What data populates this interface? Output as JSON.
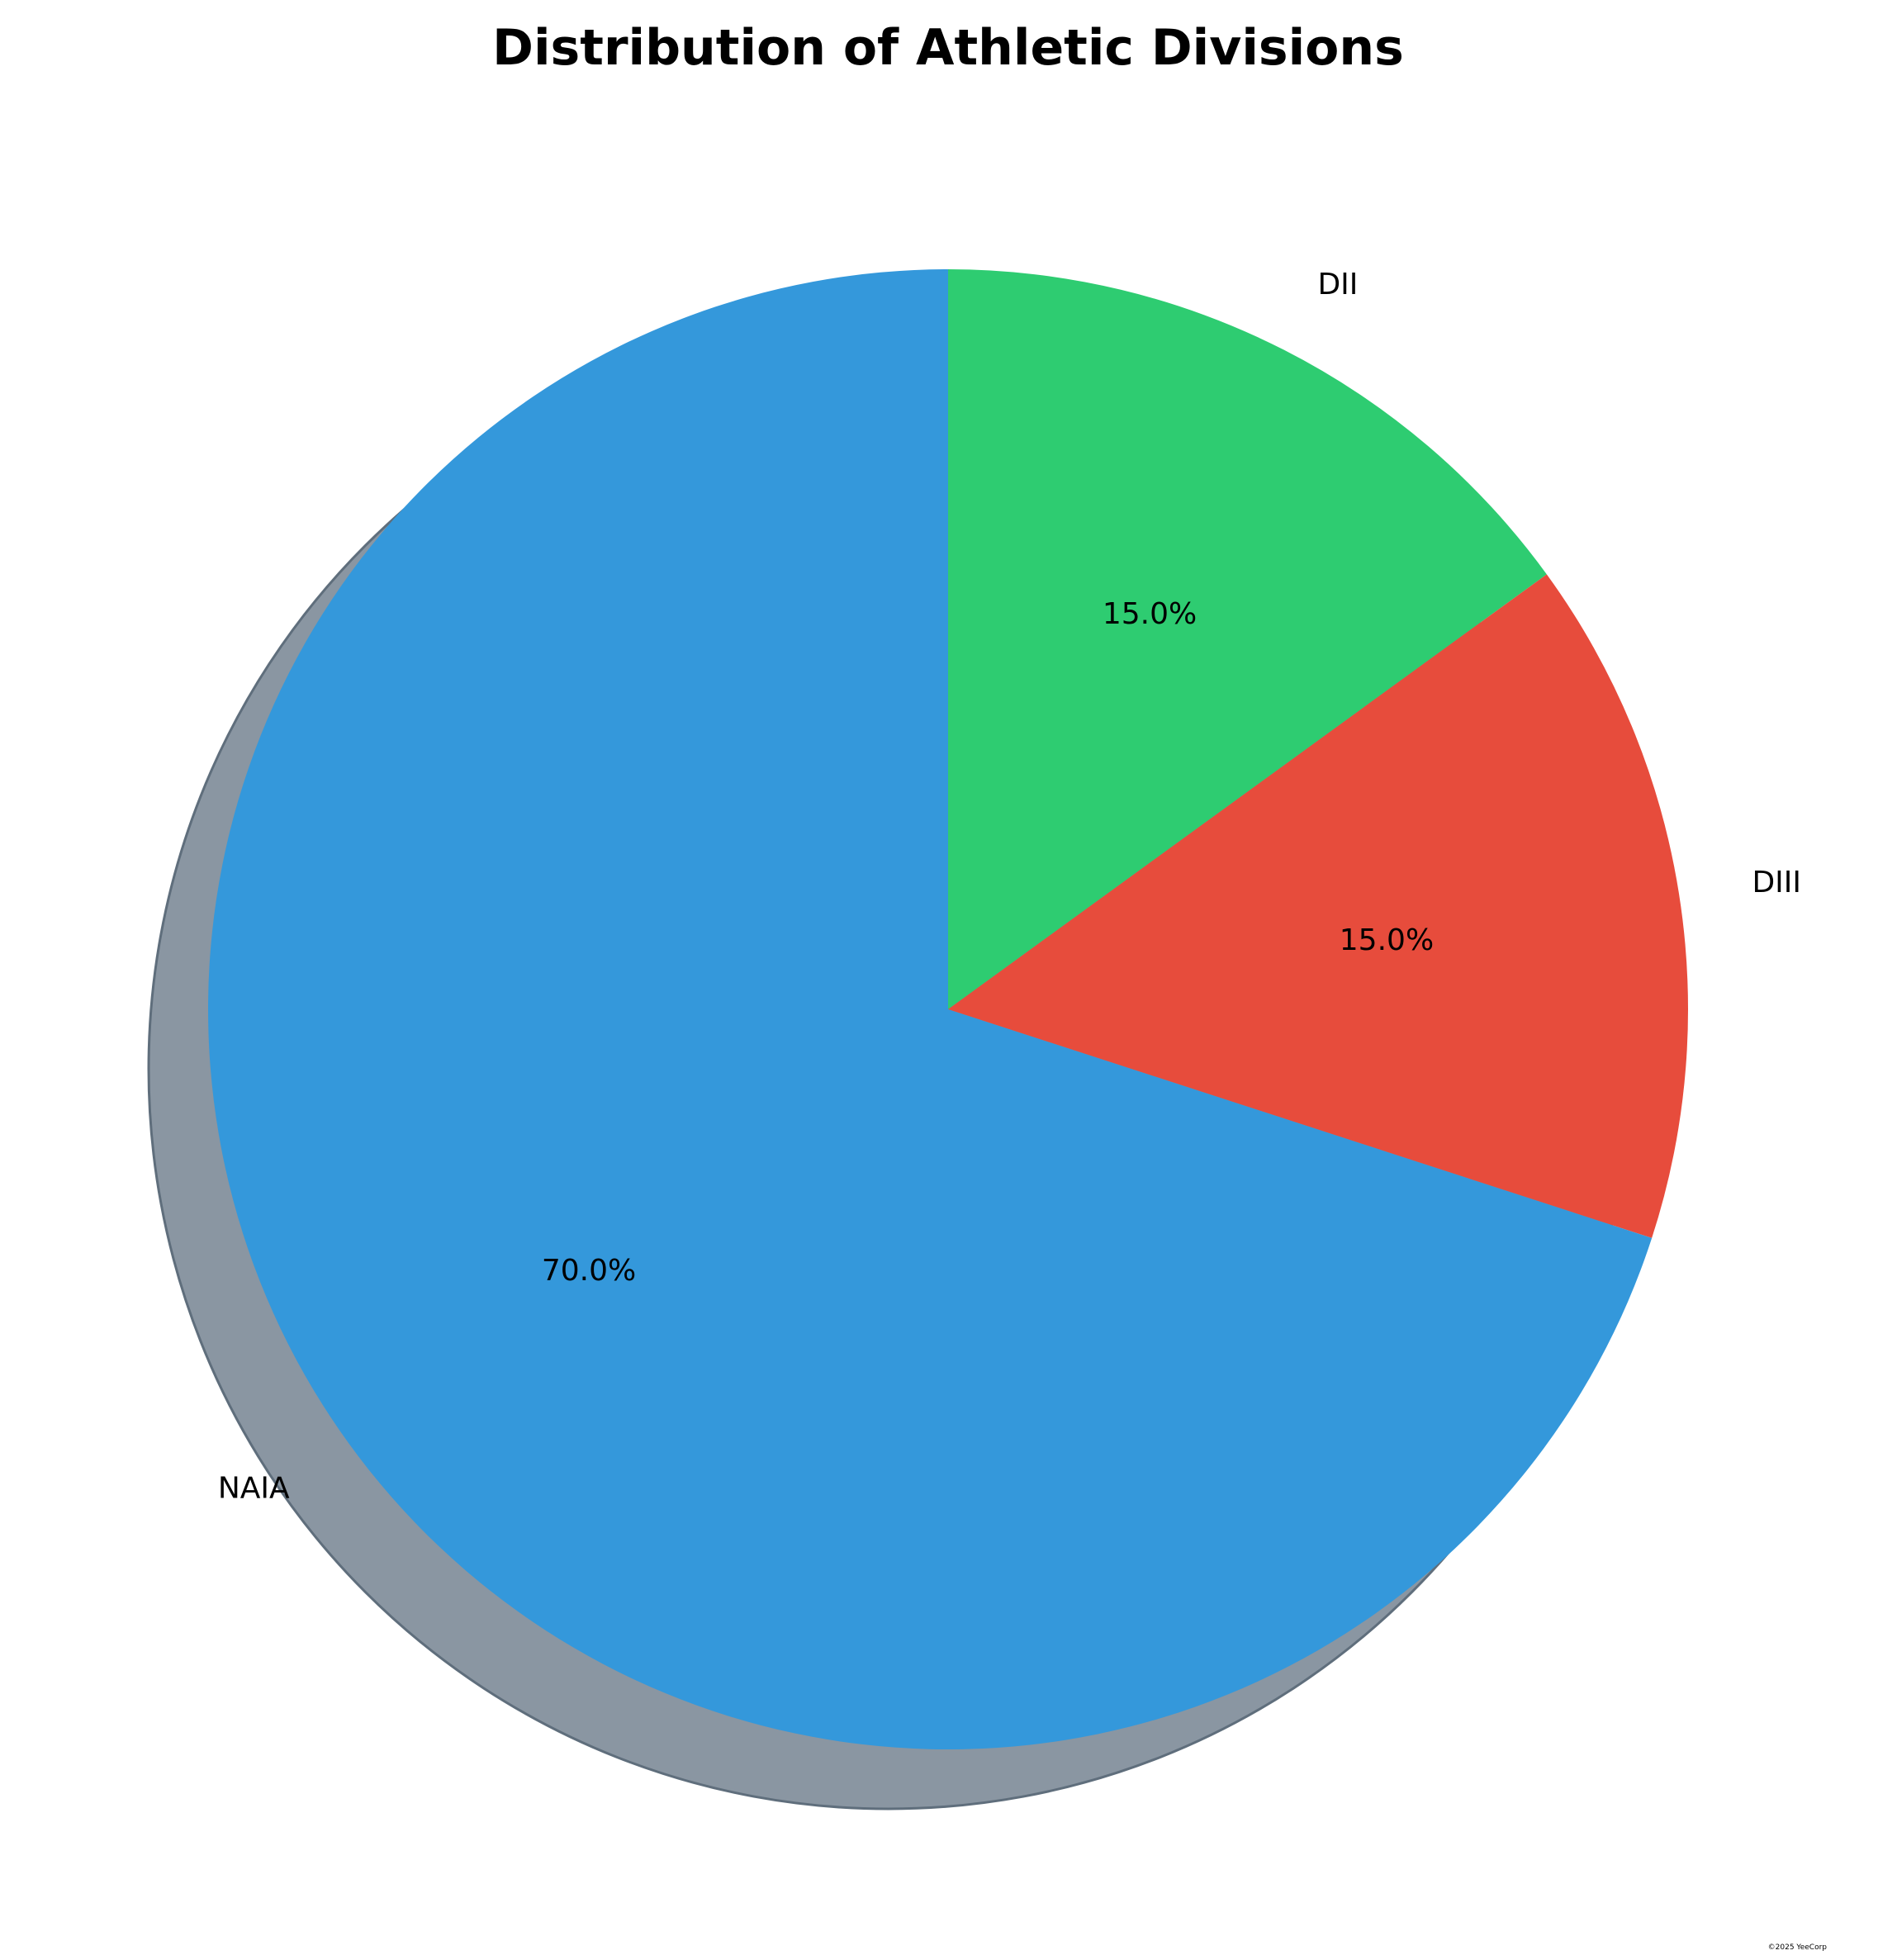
{
  "chart_data": {
    "type": "pie",
    "title": "Distribution of Athletic Divisions",
    "slices": [
      {
        "label": "DII",
        "value": 15.0,
        "pct_label": "15.0%",
        "color": "#2ecc71"
      },
      {
        "label": "DIII",
        "value": 15.0,
        "pct_label": "15.0%",
        "color": "#e74c3c"
      },
      {
        "label": "NAIA",
        "value": 70.0,
        "pct_label": "70.0%",
        "color": "#3498db"
      }
    ],
    "start_angle_deg": 90,
    "direction": "clockwise",
    "shadow": true,
    "shadow_color": "#8a96a2"
  },
  "watermark": "©2025 YeeCorp"
}
